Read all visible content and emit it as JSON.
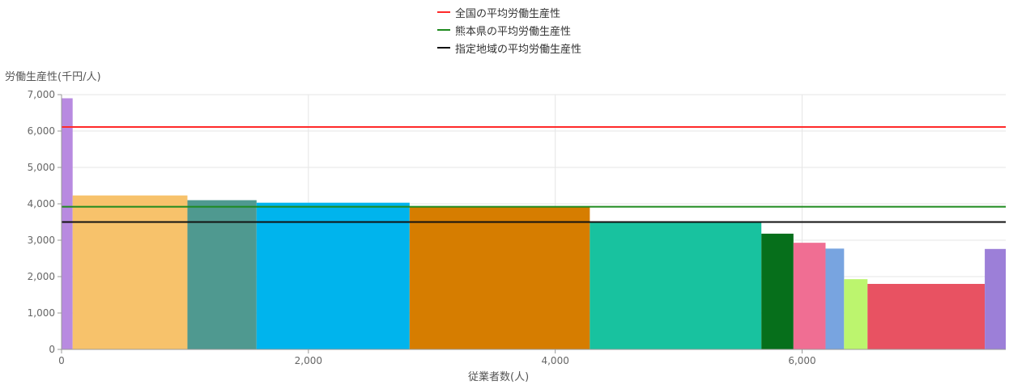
{
  "chart_data": {
    "type": "bar",
    "subtype": "variable-width (marimekko) bar chart",
    "xlabel": "従業者数(人)",
    "ylabel": "労働生産性(千円/人)",
    "xlim": [
      0,
      7650
    ],
    "ylim": [
      0,
      7000
    ],
    "xticks": [
      0,
      2000,
      4000,
      6000
    ],
    "xtick_labels": [
      "0",
      "2,000",
      "4,000",
      "6,000"
    ],
    "yticks": [
      0,
      1000,
      2000,
      3000,
      4000,
      5000,
      6000,
      7000
    ],
    "ytick_labels": [
      "0",
      "1,000",
      "2,000",
      "3,000",
      "4,000",
      "5,000",
      "6,000",
      "7,000"
    ],
    "grid": true,
    "legend_position": "top-center",
    "bars": [
      {
        "x0": 0,
        "x1": 90,
        "value": 6900,
        "color": "#b88ae0"
      },
      {
        "x0": 90,
        "x1": 1020,
        "value": 4230,
        "color": "#f7c26b"
      },
      {
        "x0": 1020,
        "x1": 1580,
        "value": 4100,
        "color": "#4f9990"
      },
      {
        "x0": 1580,
        "x1": 2820,
        "value": 4030,
        "color": "#00b4ed"
      },
      {
        "x0": 2820,
        "x1": 4280,
        "value": 3930,
        "color": "#d67d00"
      },
      {
        "x0": 4280,
        "x1": 5670,
        "value": 3480,
        "color": "#18c29f"
      },
      {
        "x0": 5670,
        "x1": 5930,
        "value": 3180,
        "color": "#066f1b"
      },
      {
        "x0": 5930,
        "x1": 6190,
        "value": 2930,
        "color": "#f06e93"
      },
      {
        "x0": 6190,
        "x1": 6340,
        "value": 2770,
        "color": "#78a4e0"
      },
      {
        "x0": 6340,
        "x1": 6530,
        "value": 1930,
        "color": "#bcf56e"
      },
      {
        "x0": 6530,
        "x1": 7480,
        "value": 1800,
        "color": "#e85262"
      },
      {
        "x0": 7480,
        "x1": 7650,
        "value": 2760,
        "color": "#9c7fd8"
      }
    ],
    "reference_lines": [
      {
        "name": "全国の平均労働生産性",
        "value": 6110,
        "color": "#ff2a2a"
      },
      {
        "name": "熊本県の平均労働生産性",
        "value": 3920,
        "color": "#1e8a1e"
      },
      {
        "name": "指定地域の平均労働生産性",
        "value": 3500,
        "color": "#111111"
      }
    ]
  }
}
